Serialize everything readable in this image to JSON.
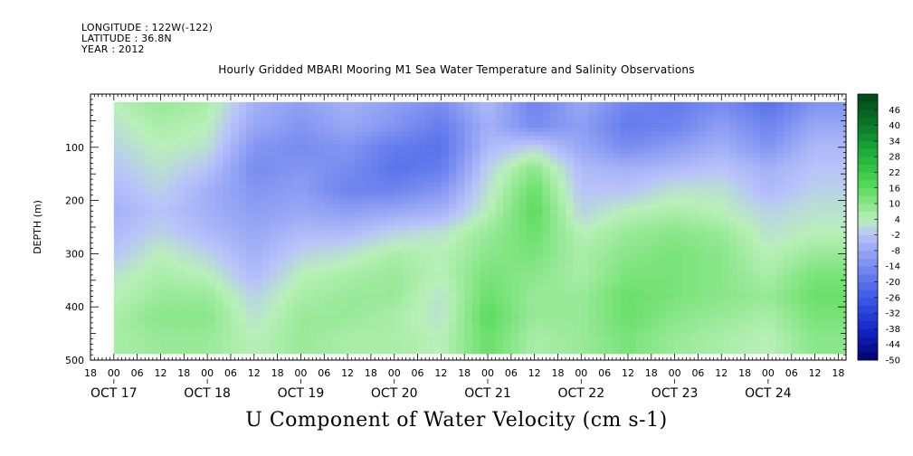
{
  "header": {
    "longitude": "LONGITUDE : 122W(-122)",
    "latitude": "LATITUDE : 36.8N",
    "year": "YEAR : 2012"
  },
  "chart_data": {
    "type": "heatmap",
    "title": "Hourly Gridded MBARI Mooring M1 Sea Water Temperature and Salinity Observations",
    "variable_title": "U Component of Water Velocity (cm s-1)",
    "ylabel": "DEPTH (m)",
    "ylim": [
      500,
      0
    ],
    "y_ticks": [
      100,
      200,
      300,
      400,
      500
    ],
    "x_start_hour": "OCT 16 18:00",
    "x_end_hour": "OCT 24 20:00",
    "hour_ticks": [
      "18",
      "00",
      "06",
      "12",
      "18",
      "00",
      "06",
      "12",
      "18",
      "00",
      "06",
      "12",
      "18",
      "00",
      "06",
      "12",
      "18",
      "00",
      "06",
      "12",
      "18",
      "00",
      "06",
      "12",
      "18",
      "00",
      "06",
      "12",
      "18",
      "00",
      "06",
      "12",
      "18"
    ],
    "date_labels": [
      "OCT 17",
      "OCT 18",
      "OCT 19",
      "OCT 20",
      "OCT 21",
      "OCT 22",
      "OCT 23",
      "OCT 24"
    ],
    "colorbar_levels": [
      46,
      40,
      34,
      28,
      22,
      16,
      10,
      4,
      -2,
      -8,
      -14,
      -20,
      -26,
      -32,
      -38,
      -44,
      -50
    ],
    "colorbar_min": -50,
    "colorbar_max": 52,
    "data_top_depth": 15,
    "data_bottom_depth": 488,
    "data_start_hour_offset": 6,
    "depth_centers": [
      20,
      60,
      100,
      140,
      180,
      220,
      260,
      300,
      340,
      380,
      420,
      460
    ],
    "time_centers_hours_from_start": [
      6,
      18,
      30,
      42,
      54,
      66,
      78,
      90,
      102,
      114,
      126,
      138,
      150,
      162,
      174,
      186
    ],
    "values": [
      [
        4,
        8,
        6,
        -6,
        -10,
        -6,
        -10,
        -14,
        -4,
        -16,
        -8,
        -16,
        -18,
        -14,
        -20,
        -12
      ],
      [
        2,
        6,
        4,
        -8,
        -12,
        -8,
        -12,
        -18,
        -6,
        -14,
        -10,
        -18,
        -16,
        -10,
        -16,
        -8
      ],
      [
        0,
        4,
        2,
        -12,
        -14,
        -12,
        -18,
        -20,
        -4,
        0,
        -8,
        -14,
        -10,
        -6,
        -12,
        -4
      ],
      [
        -2,
        2,
        -2,
        -14,
        -12,
        -14,
        -20,
        -18,
        0,
        10,
        -4,
        -6,
        -4,
        -2,
        -6,
        -2
      ],
      [
        -4,
        0,
        -6,
        -12,
        -10,
        -16,
        -16,
        -12,
        2,
        14,
        -2,
        -2,
        2,
        2,
        -4,
        0
      ],
      [
        -6,
        -2,
        -6,
        -10,
        -8,
        -10,
        -8,
        -6,
        4,
        16,
        0,
        4,
        6,
        4,
        0,
        2
      ],
      [
        -4,
        0,
        -4,
        -8,
        -4,
        -4,
        0,
        2,
        8,
        14,
        4,
        8,
        10,
        8,
        2,
        4
      ],
      [
        -2,
        4,
        0,
        -6,
        0,
        2,
        6,
        4,
        10,
        12,
        6,
        10,
        12,
        10,
        4,
        8
      ],
      [
        2,
        6,
        4,
        -4,
        4,
        6,
        8,
        4,
        12,
        10,
        6,
        12,
        12,
        10,
        6,
        12
      ],
      [
        4,
        8,
        8,
        0,
        6,
        8,
        8,
        2,
        14,
        8,
        8,
        14,
        12,
        10,
        8,
        14
      ],
      [
        6,
        10,
        10,
        2,
        8,
        8,
        6,
        2,
        16,
        8,
        8,
        14,
        10,
        8,
        6,
        12
      ],
      [
        6,
        8,
        8,
        4,
        8,
        6,
        6,
        4,
        14,
        6,
        8,
        12,
        8,
        6,
        4,
        10
      ]
    ]
  }
}
